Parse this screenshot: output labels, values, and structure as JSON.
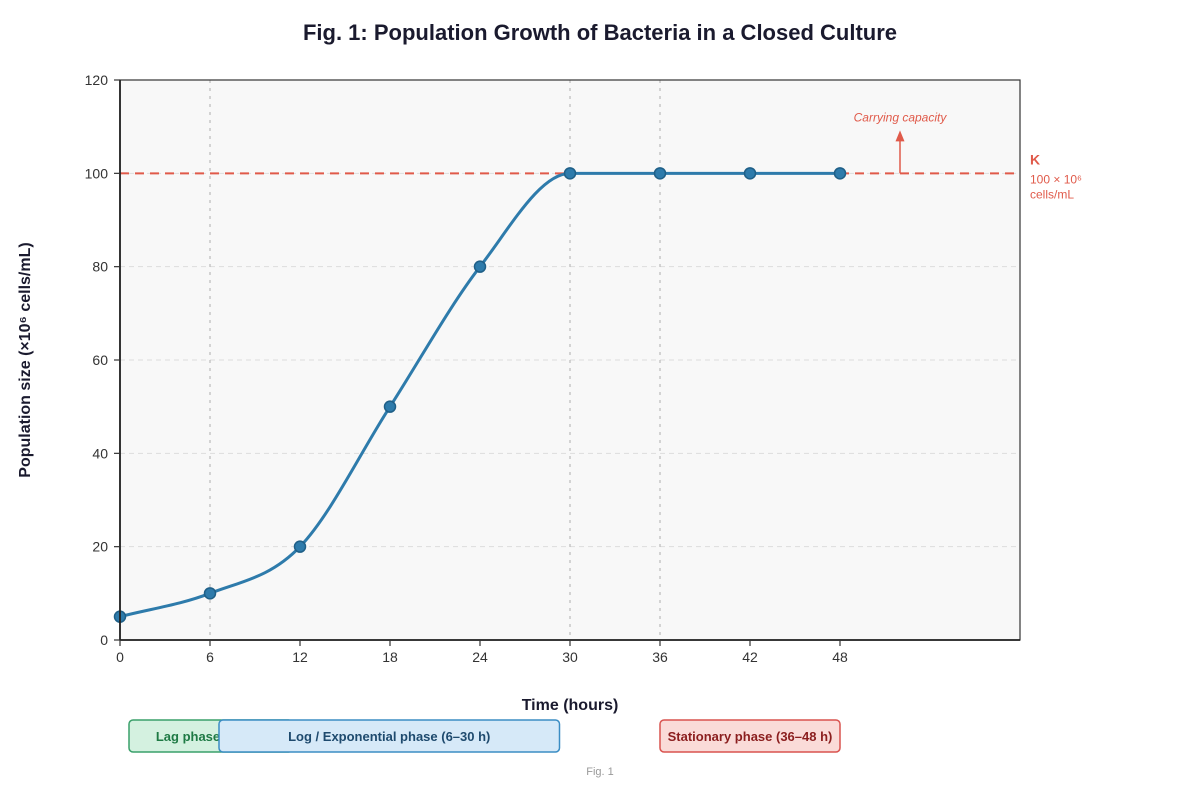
{
  "chart_data": {
    "type": "line",
    "title": "Fig. 1: Population Growth of Bacteria in a Closed Culture",
    "xlabel": "Time (hours)",
    "ylabel": "Population size (×10⁶ cells/mL)",
    "xlim": [
      0,
      60
    ],
    "ylim": [
      0,
      120
    ],
    "x_ticks": [
      0,
      6,
      12,
      18,
      24,
      30,
      36,
      42,
      48
    ],
    "y_ticks": [
      0,
      20,
      40,
      60,
      80,
      100,
      120
    ],
    "grid": true,
    "series": [
      {
        "x": [
          0,
          6,
          12,
          18,
          24,
          30,
          36,
          42,
          48
        ],
        "values": [
          5,
          10,
          20,
          50,
          80,
          100,
          100,
          100,
          100
        ],
        "color": "#2e7bab"
      }
    ],
    "vertical_guides": [
      6,
      30,
      36
    ],
    "reference_line": {
      "y": 100,
      "color": "#e05a4a",
      "label": "K",
      "sublabel_line1": "100 × 10⁶",
      "sublabel_line2": "cells/mL",
      "annotation": "Carrying capacity",
      "annotation_x": 52
    },
    "phases": [
      {
        "label": "Lag phase (0–6 h)",
        "start": 0.6,
        "end": 11.5,
        "fill": "#d4f1e0",
        "stroke": "#3aa06a",
        "text_color": "#1e7a44"
      },
      {
        "label": "Log / Exponential phase (6–30 h)",
        "start": 6.6,
        "end": 29.3,
        "fill": "#d6e9f8",
        "stroke": "#3b8dc4",
        "text_color": "#1e4a6e"
      },
      {
        "label": "Stationary phase (36–48 h)",
        "start": 36,
        "end": 48,
        "fill": "#fadbd8",
        "stroke": "#d9534f",
        "text_color": "#8b1e1e"
      }
    ],
    "footer": "Fig. 1"
  }
}
